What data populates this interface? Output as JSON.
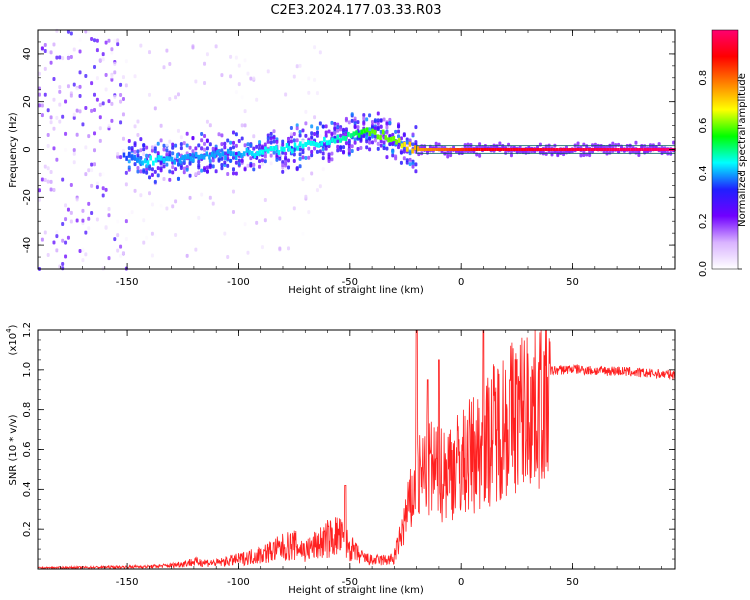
{
  "title": "C2E3.2024.177.03.33.R03",
  "chart_data": [
    {
      "type": "heatmap",
      "xlabel": "Height of straight line (km)",
      "ylabel": "Frequency (Hz)",
      "xlim": [
        -190,
        96
      ],
      "ylim": [
        -50,
        50
      ],
      "x_ticks": [
        -150,
        -100,
        -50,
        0,
        50
      ],
      "y_ticks": [
        -40,
        -20,
        0,
        20,
        40
      ],
      "colorbar": {
        "label": "Normalized spectral amplitude",
        "range": [
          0,
          1
        ],
        "ticks": [
          "0.0",
          "0.2",
          "0.4",
          "0.6",
          "0.8"
        ],
        "colors": [
          "#ffffff",
          "#d9b3ff",
          "#7000ff",
          "#2020ff",
          "#00ffff",
          "#00ff00",
          "#ffff00",
          "#ff8000",
          "#ff0000",
          "#ff0070"
        ]
      },
      "ridge": {
        "x": [
          -150,
          -140,
          -130,
          -120,
          -110,
          -100,
          -90,
          -80,
          -70,
          -60,
          -50,
          -40,
          -35,
          -30,
          -25,
          -20,
          -10,
          0,
          10,
          96
        ],
        "frequency_hz": [
          -3,
          -5,
          -4,
          -3,
          -2,
          -2,
          -1,
          0,
          2,
          4,
          6,
          7,
          6,
          3,
          1,
          0,
          0,
          0,
          0,
          0
        ],
        "amplitude": [
          0.35,
          0.45,
          0.4,
          0.4,
          0.4,
          0.4,
          0.45,
          0.45,
          0.45,
          0.45,
          0.5,
          0.6,
          0.6,
          0.6,
          0.7,
          0.75,
          0.8,
          0.85,
          0.9,
          1.0
        ]
      }
    },
    {
      "type": "line",
      "xlabel": "Height of straight line (km)",
      "ylabel": "SNR (10 * v/v)",
      "y_multiplier_label": "(x10",
      "y_multiplier_exp": "4",
      "xlim": [
        -190,
        96
      ],
      "ylim": [
        0,
        1.2
      ],
      "x_ticks": [
        -150,
        -100,
        -50,
        0,
        50
      ],
      "y_ticks": [
        0.2,
        0.4,
        0.6,
        0.8,
        1.0,
        1.2
      ],
      "color": "#ff2020",
      "envelope": {
        "x": [
          -190,
          -160,
          -140,
          -130,
          -120,
          -110,
          -100,
          -90,
          -80,
          -75,
          -70,
          -65,
          -60,
          -55,
          -50,
          -45,
          -40,
          -30,
          -28,
          -25,
          -20,
          -15,
          -10,
          -5,
          0,
          5,
          10,
          15,
          20,
          25,
          30,
          35,
          40,
          50,
          60,
          70,
          80,
          96
        ],
        "y": [
          0.01,
          0.015,
          0.02,
          0.03,
          0.06,
          0.05,
          0.08,
          0.12,
          0.18,
          0.2,
          0.15,
          0.2,
          0.25,
          0.28,
          0.18,
          0.1,
          0.07,
          0.08,
          0.15,
          0.3,
          0.5,
          0.6,
          0.55,
          0.6,
          0.62,
          0.68,
          0.72,
          0.82,
          0.88,
          0.92,
          0.95,
          0.98,
          1.0,
          1.01,
          1.0,
          1.0,
          0.99,
          0.98
        ]
      },
      "spikes": [
        {
          "x": -20,
          "y": 1.2
        },
        {
          "x": -15,
          "y": 0.95
        },
        {
          "x": -10,
          "y": 1.05
        },
        {
          "x": 10,
          "y": 1.2
        },
        {
          "x": -52,
          "y": 0.42
        }
      ]
    }
  ]
}
